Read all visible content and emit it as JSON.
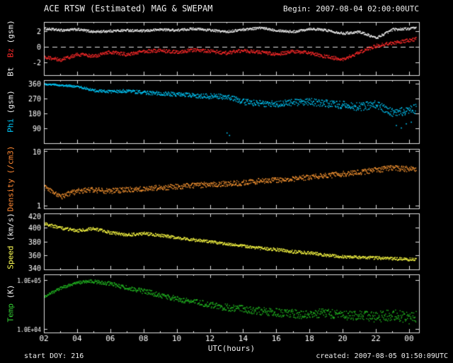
{
  "header": {
    "title": "ACE RTSW (Estimated) MAG & SWEPAM",
    "begin_label": "Begin: 2007-08-04 02:00:00UTC"
  },
  "footer": {
    "start_doy": "start DOY: 216",
    "created": "created: 2007-08-05 01:50:09UTC"
  },
  "chart_data": {
    "type": "scatter",
    "title": "ACE RTSW (Estimated) MAG & SWEPAM",
    "xlabel": "UTC(hours)",
    "x_range": [
      2,
      24.6
    ],
    "axis_color": "#e0e0e0",
    "background": "#000000",
    "x_ticks": [
      {
        "v": 2,
        "label": "02"
      },
      {
        "v": 4,
        "label": "04"
      },
      {
        "v": 6,
        "label": "06"
      },
      {
        "v": 8,
        "label": "08"
      },
      {
        "v": 10,
        "label": "10"
      },
      {
        "v": 12,
        "label": "12"
      },
      {
        "v": 14,
        "label": "14"
      },
      {
        "v": 16,
        "label": "16"
      },
      {
        "v": 18,
        "label": "18"
      },
      {
        "v": 20,
        "label": "20"
      },
      {
        "v": 22,
        "label": "22"
      },
      {
        "v": 24,
        "label": "00"
      }
    ],
    "shared_x": [
      2,
      3,
      4,
      5,
      6,
      7,
      8,
      9,
      10,
      11,
      12,
      13,
      14,
      15,
      16,
      17,
      18,
      19,
      20,
      21,
      22,
      23,
      24,
      24.4
    ],
    "panels": [
      {
        "name": "mag",
        "scale": "linear",
        "y_range": [
          -3.6,
          3.2
        ],
        "y_ticks": [
          {
            "v": 2,
            "label": "2"
          },
          {
            "v": 0,
            "label": "0"
          },
          {
            "v": -2,
            "label": "-2"
          }
        ],
        "zero_line": true,
        "label_parts": [
          {
            "text": "Bt  ",
            "color": "#f2f2f2"
          },
          {
            "text": "Bz",
            "color": "#ff2a2a"
          },
          {
            "text": " (gsm)",
            "color": "#f2f2f2"
          }
        ],
        "series": [
          {
            "name": "Bt",
            "color": "#f5f5f5",
            "noise": 0.15,
            "y": [
              2.4,
              2.2,
              2.3,
              2.0,
              2.1,
              2.2,
              2.1,
              2.3,
              2.2,
              2.4,
              2.2,
              2.0,
              2.3,
              2.5,
              2.2,
              2.0,
              2.4,
              2.2,
              1.8,
              2.0,
              1.2,
              2.3,
              2.4,
              2.5
            ]
          },
          {
            "name": "Bz",
            "color": "#ff2a2a",
            "noise": 0.22,
            "y": [
              -1.2,
              -1.6,
              -0.9,
              -1.1,
              -0.6,
              -0.9,
              -0.5,
              -0.4,
              -0.6,
              -0.3,
              -0.5,
              -0.7,
              -0.4,
              -0.6,
              -0.9,
              -0.5,
              -0.7,
              -1.2,
              -1.5,
              -0.6,
              0.2,
              0.6,
              0.9,
              1.1
            ]
          }
        ]
      },
      {
        "name": "phi",
        "scale": "linear",
        "y_range": [
          0,
          380
        ],
        "y_ticks": [
          {
            "v": 360,
            "label": "360"
          },
          {
            "v": 270,
            "label": "270"
          },
          {
            "v": 180,
            "label": "180"
          },
          {
            "v": 90,
            "label": "90"
          }
        ],
        "label_parts": [
          {
            "text": "Phi",
            "color": "#00ccff"
          },
          {
            "text": " (gsm)",
            "color": "#f2f2f2"
          }
        ],
        "series": [
          {
            "name": "Phi",
            "color": "#00ccff",
            "noise": 5,
            "noise_end": 28,
            "y": [
              358,
              352,
              345,
              320,
              312,
              318,
              308,
              302,
              296,
              290,
              286,
              282,
              252,
              242,
              238,
              248,
              252,
              242,
              232,
              222,
              238,
              185,
              205,
              210
            ],
            "points": [
              [
                13.0,
                65
              ],
              [
                13.15,
                50
              ],
              [
                23.2,
                110
              ],
              [
                23.5,
                95
              ],
              [
                23.8,
                120
              ],
              [
                24.1,
                130
              ]
            ]
          }
        ]
      },
      {
        "name": "density",
        "scale": "log",
        "y_range": [
          0.9,
          11
        ],
        "y_ticks": [
          {
            "v": 10,
            "label": "10"
          },
          {
            "v": 1,
            "label": "1"
          }
        ],
        "label_parts": [
          {
            "text": "Density",
            "color": "#ff8833"
          },
          {
            "text": " (/cm3)",
            "color": "#ff8833"
          }
        ],
        "series": [
          {
            "name": "Density",
            "color": "#ff9933",
            "noise": 0.05,
            "y": [
              2.2,
              1.5,
              1.9,
              2.0,
              1.9,
              2.0,
              2.1,
              2.2,
              2.3,
              2.4,
              2.5,
              2.6,
              2.7,
              2.9,
              3.0,
              3.2,
              3.4,
              3.6,
              3.9,
              4.2,
              4.6,
              5.0,
              4.8,
              4.7
            ]
          }
        ]
      },
      {
        "name": "speed",
        "scale": "linear",
        "y_range": [
          340,
          420
        ],
        "y_ticks": [
          {
            "v": 420,
            "label": "420"
          },
          {
            "v": 400,
            "label": "400"
          },
          {
            "v": 380,
            "label": "380"
          },
          {
            "v": 360,
            "label": "360"
          },
          {
            "v": 340,
            "label": "340"
          }
        ],
        "label_parts": [
          {
            "text": "Speed",
            "color": "#ffff55"
          },
          {
            "text": " (km/s)",
            "color": "#f2f2f2"
          }
        ],
        "series": [
          {
            "name": "Speed",
            "color": "#ffff44",
            "noise": 2.2,
            "y": [
              406,
              400,
              396,
              399,
              393,
              390,
              392,
              389,
              386,
              383,
              380,
              377,
              374,
              371,
              369,
              366,
              364,
              361,
              359,
              358,
              357,
              356,
              355,
              355
            ]
          }
        ]
      },
      {
        "name": "temp",
        "scale": "log",
        "y_range": [
          8500,
          130000
        ],
        "y_ticks": [
          {
            "v": 100000,
            "label": "1.0E+05"
          },
          {
            "v": 10000,
            "label": "1.0E+04"
          }
        ],
        "label_parts": [
          {
            "text": "Temp",
            "color": "#33cc33"
          },
          {
            "text": " (K)",
            "color": "#f2f2f2"
          }
        ],
        "series": [
          {
            "name": "Temp",
            "color": "#22bb22",
            "noise": 0.025,
            "noise_end": 0.12,
            "y": [
              45000,
              70000,
              90000,
              95000,
              85000,
              70000,
              60000,
              50000,
              42000,
              36000,
              32000,
              28000,
              26000,
              24000,
              22000,
              21000,
              20000,
              22000,
              19000,
              20000,
              18000,
              20000,
              17000,
              18000
            ]
          }
        ]
      }
    ]
  }
}
